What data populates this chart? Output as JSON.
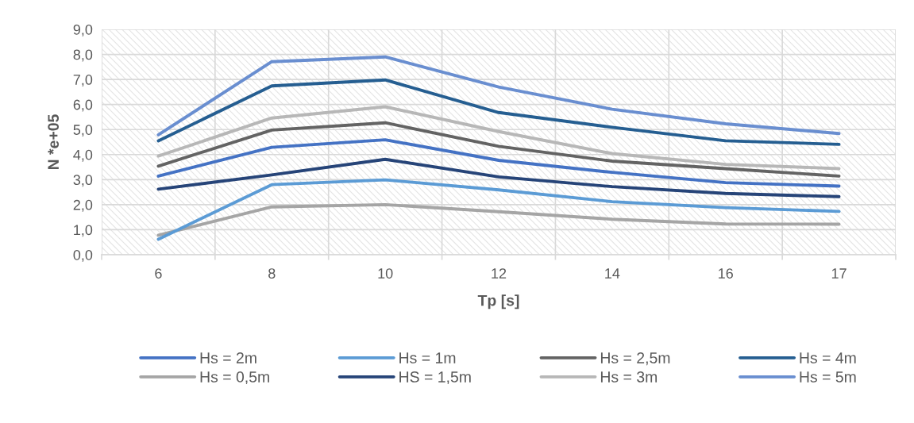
{
  "chart_data": {
    "type": "line",
    "xlabel": "Tp [s]",
    "ylabel": "N *e+05",
    "categories": [
      "6",
      "8",
      "10",
      "12",
      "14",
      "16",
      "17"
    ],
    "series": [
      {
        "name": "Hs = 2m",
        "color": "#4472c4",
        "values": [
          3.14,
          4.29,
          4.59,
          3.77,
          3.29,
          2.88,
          2.74
        ]
      },
      {
        "name": "Hs = 0,5m",
        "color": "#a5a5a5",
        "values": [
          0.78,
          1.91,
          2.0,
          1.72,
          1.42,
          1.23,
          1.22
        ]
      },
      {
        "name": "Hs = 1m",
        "color": "#5b9bd5",
        "values": [
          0.62,
          2.8,
          2.99,
          2.59,
          2.12,
          1.88,
          1.73
        ]
      },
      {
        "name": "HS = 1,5m",
        "color": "#264478",
        "values": [
          2.62,
          3.19,
          3.81,
          3.11,
          2.72,
          2.45,
          2.32
        ]
      },
      {
        "name": "Hs = 2,5m",
        "color": "#636363",
        "values": [
          3.54,
          4.98,
          5.27,
          4.33,
          3.74,
          3.44,
          3.14
        ]
      },
      {
        "name": "Hs = 3m",
        "color": "#b7b7b7",
        "values": [
          3.94,
          5.46,
          5.91,
          4.92,
          4.04,
          3.61,
          3.44
        ]
      },
      {
        "name": "Hs = 4m",
        "color": "#255e91",
        "values": [
          4.55,
          6.74,
          6.98,
          5.68,
          5.09,
          4.55,
          4.41
        ]
      },
      {
        "name": "Hs = 5m",
        "color": "#698ed0",
        "values": [
          4.79,
          7.71,
          7.9,
          6.7,
          5.81,
          5.23,
          4.84
        ]
      }
    ],
    "ylim": [
      0,
      9
    ],
    "yticks": [
      {
        "value": 0,
        "label": "0,0"
      },
      {
        "value": 1,
        "label": "1,0"
      },
      {
        "value": 2,
        "label": "2,0"
      },
      {
        "value": 3,
        "label": "3,0"
      },
      {
        "value": 4,
        "label": "4,0"
      },
      {
        "value": 5,
        "label": "5,0"
      },
      {
        "value": 6,
        "label": "6,0"
      },
      {
        "value": 7,
        "label": "7,0"
      },
      {
        "value": 8,
        "label": "8,0"
      },
      {
        "value": 9,
        "label": "9,0"
      }
    ],
    "grid": true,
    "legend": "bottom",
    "marker": "none",
    "line_style": "solid"
  }
}
